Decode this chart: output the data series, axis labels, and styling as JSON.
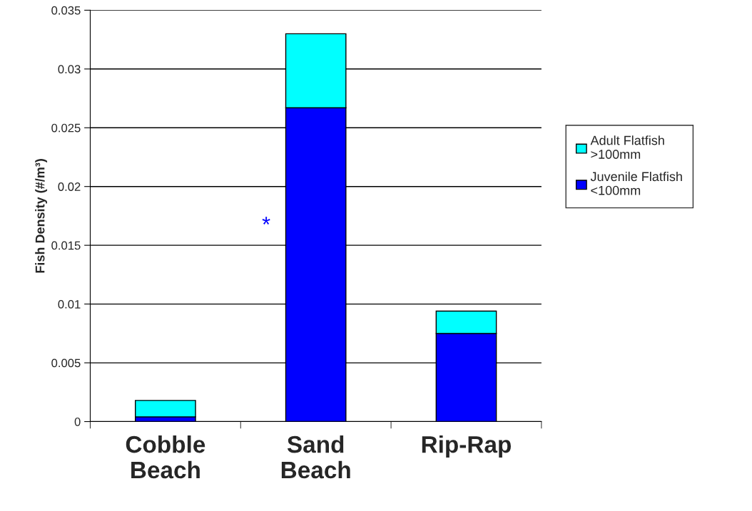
{
  "chart_data": {
    "type": "bar",
    "stacked": true,
    "categories": [
      "Cobble\nBeach",
      "Sand\nBeach",
      "Rip-Rap"
    ],
    "ylabel": "Fish Density (#/m³)",
    "series": [
      {
        "name": "Juvenile Flatfish\n<100mm",
        "color": "#0000ff",
        "values": [
          0.0004,
          0.0267,
          0.0075
        ]
      },
      {
        "name": "Adult Flatfish\n>100mm",
        "color": "#00ffff",
        "values": [
          0.0014,
          0.0063,
          0.0019
        ]
      }
    ],
    "ylim": [
      0,
      0.035
    ],
    "yticks": [
      0,
      0.005,
      0.01,
      0.015,
      0.02,
      0.025,
      0.03,
      0.035
    ],
    "grid": "y",
    "legend": "right",
    "annotations": [
      "*"
    ]
  }
}
